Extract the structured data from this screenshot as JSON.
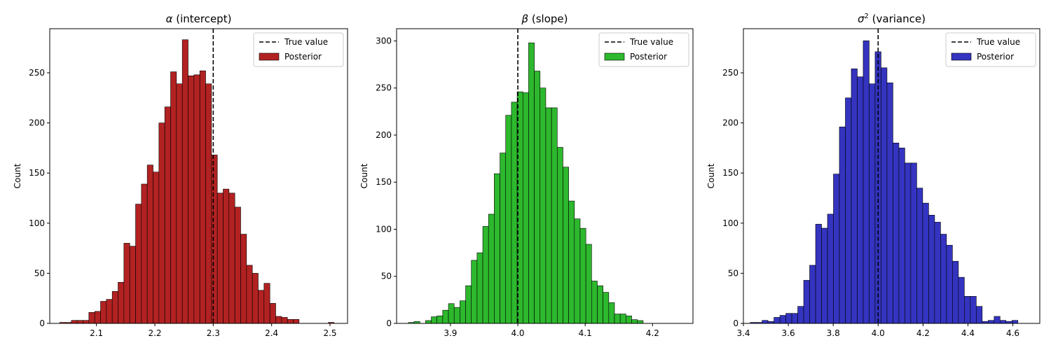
{
  "chart_data": [
    {
      "type": "bar",
      "title_symbol": "α",
      "title_sup": "",
      "title_rest": " (intercept)",
      "xlabel": "",
      "ylabel": "Count",
      "xlim": [
        2.02,
        2.53
      ],
      "ylim": [
        0,
        294
      ],
      "x_ticks": [
        2.1,
        2.2,
        2.3,
        2.4,
        2.5
      ],
      "x_tick_labels": [
        "2.1",
        "2.2",
        "2.3",
        "2.4",
        "2.5"
      ],
      "y_ticks": [
        0,
        50,
        100,
        150,
        200,
        250
      ],
      "y_tick_labels": [
        "0",
        "50",
        "100",
        "150",
        "200",
        "250"
      ],
      "bin_start": 2.027,
      "bin_width": 0.01,
      "values": [
        0,
        1,
        1,
        3,
        3,
        3,
        11,
        12,
        22,
        24,
        32,
        41,
        80,
        77,
        119,
        139,
        158,
        151,
        200,
        216,
        251,
        239,
        283,
        247,
        248,
        252,
        239,
        168,
        130,
        134,
        130,
        116,
        89,
        58,
        50,
        33,
        40,
        20,
        7,
        6,
        4,
        4,
        0,
        0,
        0,
        0,
        0,
        1
      ],
      "true_value": 2.3,
      "color": "#b22222",
      "edge_color": "#000000",
      "legend": {
        "position": "top-right",
        "entries": [
          {
            "label": "True value",
            "style": "dashed-line",
            "color": "#000000"
          },
          {
            "label": "Posterior",
            "style": "patch",
            "color": "#b22222"
          }
        ]
      }
    },
    {
      "type": "bar",
      "title_symbol": "β",
      "title_sup": "",
      "title_rest": " (slope)",
      "xlabel": "",
      "ylabel": "Count",
      "xlim": [
        3.82,
        4.26
      ],
      "ylim": [
        0,
        313
      ],
      "x_ticks": [
        3.9,
        4.0,
        4.1,
        4.2
      ],
      "x_tick_labels": [
        "3.9",
        "4.0",
        "4.1",
        "4.2"
      ],
      "y_ticks": [
        0,
        50,
        100,
        150,
        200,
        250,
        300
      ],
      "y_tick_labels": [
        "0",
        "50",
        "100",
        "150",
        "200",
        "250",
        "300"
      ],
      "bin_start": 3.829,
      "bin_width": 0.0085,
      "values": [
        0,
        1,
        2,
        0,
        3,
        7,
        8,
        14,
        21,
        17,
        24,
        40,
        67,
        75,
        103,
        116,
        159,
        181,
        221,
        235,
        246,
        245,
        298,
        268,
        250,
        229,
        229,
        187,
        166,
        130,
        111,
        101,
        84,
        45,
        40,
        33,
        22,
        10,
        10,
        8,
        4,
        3
      ],
      "true_value": 4.0,
      "color": "#2db82d",
      "edge_color": "#000000",
      "legend": {
        "position": "top-right",
        "entries": [
          {
            "label": "True value",
            "style": "dashed-line",
            "color": "#000000"
          },
          {
            "label": "Posterior",
            "style": "patch",
            "color": "#2db82d"
          }
        ]
      }
    },
    {
      "type": "bar",
      "title_symbol": "σ",
      "title_sup": "2",
      "title_rest": " (variance)",
      "xlabel": "",
      "ylabel": "Count",
      "xlim": [
        3.4,
        4.72
      ],
      "ylim": [
        0,
        294
      ],
      "x_ticks": [
        3.4,
        3.6,
        3.8,
        4.0,
        4.2,
        4.4,
        4.6
      ],
      "x_tick_labels": [
        "3.4",
        "3.6",
        "3.8",
        "4.0",
        "4.2",
        "4.4",
        "4.6"
      ],
      "y_ticks": [
        0,
        50,
        100,
        150,
        200,
        250
      ],
      "y_tick_labels": [
        "0",
        "50",
        "100",
        "150",
        "200",
        "250"
      ],
      "bin_start": 3.43,
      "bin_width": 0.0265,
      "values": [
        1,
        1,
        3,
        2,
        6,
        8,
        10,
        10,
        17,
        43,
        58,
        99,
        95,
        109,
        149,
        196,
        225,
        254,
        246,
        282,
        239,
        271,
        255,
        240,
        180,
        175,
        160,
        160,
        135,
        120,
        108,
        101,
        89,
        78,
        62,
        46,
        27,
        27,
        17,
        2,
        3,
        7,
        3,
        2,
        3
      ],
      "true_value": 4.0,
      "color": "#3434c0",
      "edge_color": "#000000",
      "legend": {
        "position": "top-right",
        "entries": [
          {
            "label": "True value",
            "style": "dashed-line",
            "color": "#000000"
          },
          {
            "label": "Posterior",
            "style": "patch",
            "color": "#3434c0"
          }
        ]
      }
    }
  ]
}
